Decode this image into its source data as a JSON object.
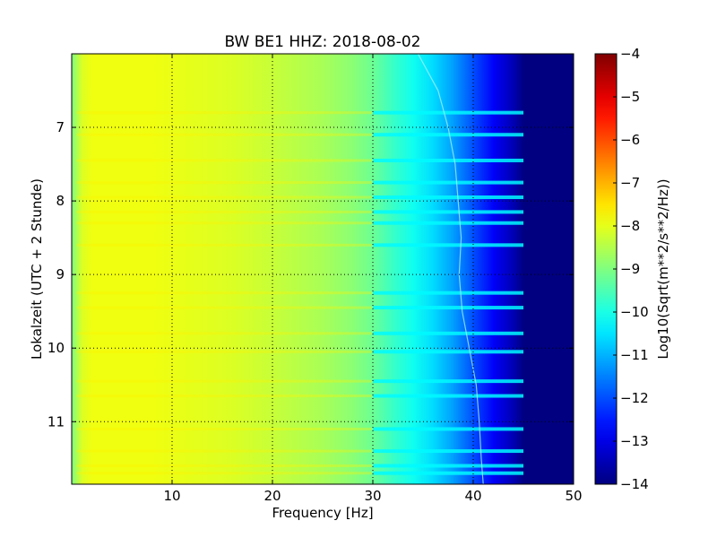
{
  "chart_data": {
    "type": "heatmap",
    "title": "BW BE1 HHZ: 2018-08-02",
    "xlabel": "Frequency [Hz]",
    "ylabel": "Lokalzeit (UTC + 2 Stunde)",
    "colorbar_label": "Log10(Sqrt(m**2/s**2/Hz))",
    "xlim": [
      0,
      50
    ],
    "ylim": [
      11.85,
      6.0
    ],
    "x_ticks": [
      10,
      20,
      30,
      40,
      50
    ],
    "y_ticks": [
      7,
      8,
      9,
      10,
      11
    ],
    "colorbar_range": [
      -14,
      -4
    ],
    "colorbar_ticks": [
      -14,
      -13,
      -12,
      -11,
      -10,
      -9,
      -8,
      -7,
      -6,
      -5,
      -4
    ],
    "colormap": "jet",
    "grid": true,
    "profile": {
      "frequency_hz": [
        0,
        1,
        2,
        4,
        8,
        12,
        16,
        20,
        25,
        28,
        30,
        32,
        34,
        36,
        38,
        40,
        42,
        44,
        45,
        46,
        50
      ],
      "log10_amplitude": [
        -9.0,
        -8.1,
        -7.9,
        -7.9,
        -7.9,
        -8.0,
        -8.1,
        -8.3,
        -8.6,
        -8.9,
        -9.2,
        -9.7,
        -10.1,
        -10.6,
        -11.2,
        -12.0,
        -12.8,
        -13.5,
        -14.0,
        -14.0,
        -14.0
      ]
    },
    "high_noise_bands_hour": [
      6.8,
      7.1,
      7.45,
      7.75,
      7.95,
      8.15,
      8.3,
      8.6,
      9.25,
      9.45,
      9.8,
      10.05,
      10.45,
      10.65,
      11.1,
      11.4,
      11.6,
      11.7
    ],
    "ridge_line": {
      "hour": [
        6.0,
        6.5,
        7.0,
        7.5,
        8.0,
        8.5,
        9.0,
        9.5,
        10.0,
        10.5,
        11.0,
        11.5,
        11.85
      ],
      "frequency_hz": [
        34.5,
        36.5,
        37.5,
        38.2,
        38.5,
        38.8,
        38.6,
        38.9,
        39.6,
        40.3,
        40.6,
        40.8,
        41.0
      ]
    }
  }
}
